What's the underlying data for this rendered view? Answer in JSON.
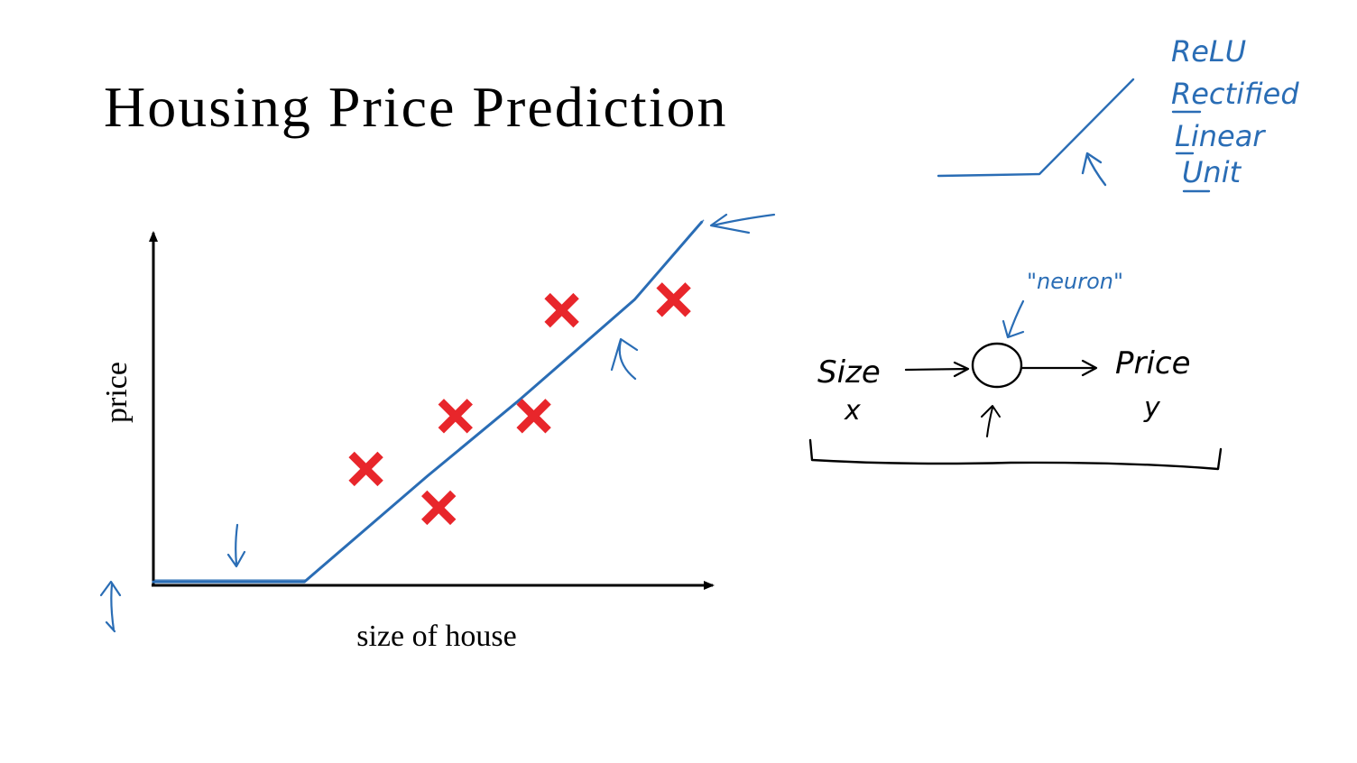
{
  "slide": {
    "title": "Housing Price Prediction"
  },
  "chart_data": {
    "type": "scatter",
    "xlabel": "size of house",
    "ylabel": "price",
    "xlim": [
      0,
      10
    ],
    "ylim": [
      0,
      10
    ],
    "points": [
      {
        "x": 3.8,
        "y": 3.3
      },
      {
        "x": 5.1,
        "y": 2.2
      },
      {
        "x": 5.4,
        "y": 4.8
      },
      {
        "x": 6.8,
        "y": 4.8
      },
      {
        "x": 7.3,
        "y": 7.8
      },
      {
        "x": 9.3,
        "y": 8.1
      }
    ],
    "fit_line": {
      "shape": "relu",
      "points": [
        {
          "x": 0,
          "y": 0.1
        },
        {
          "x": 2.7,
          "y": 0.1
        },
        {
          "x": 4.9,
          "y": 3.1
        },
        {
          "x": 6.5,
          "y": 5.2
        },
        {
          "x": 8.6,
          "y": 8.1
        },
        {
          "x": 9.8,
          "y": 10.3
        }
      ]
    },
    "colors": {
      "axis": "#000000",
      "points": "#e8262b",
      "line": "#2a6db5"
    }
  },
  "relu_note": {
    "lines": [
      "ReLU",
      "Rectified",
      "Linear",
      "Unit"
    ],
    "color": "#2a6db5"
  },
  "neuron_diagram": {
    "neuron_label": "\"neuron\"",
    "input_label": "Size",
    "input_symbol": "x",
    "output_label": "Price",
    "output_symbol": "y"
  }
}
